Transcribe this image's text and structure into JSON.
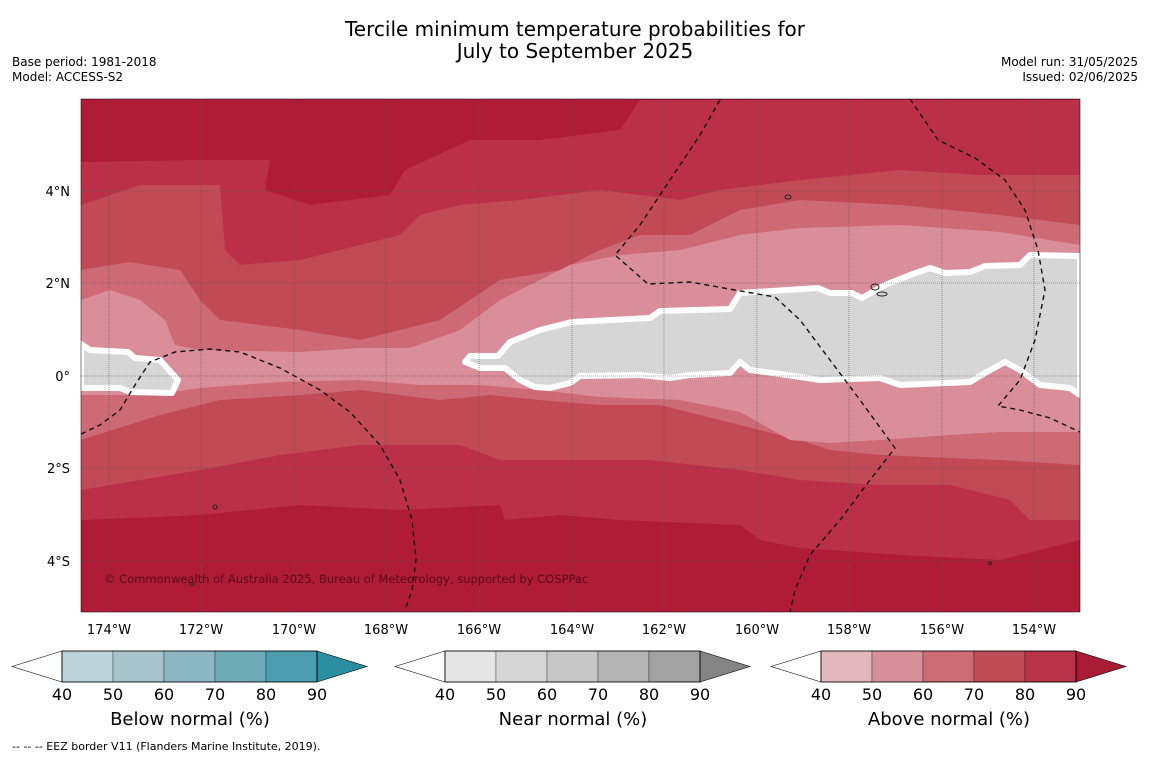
{
  "title": {
    "line1": "Tercile minimum temperature probabilities for",
    "line2": "July to September 2025"
  },
  "meta": {
    "base_period": "Base period: 1981-2018",
    "model": "Model: ACCESS-S2",
    "model_run": "Model run: 31/05/2025",
    "issued": "Issued: 02/06/2025"
  },
  "map": {
    "copyright": "© Commonwealth of Australia 2025, Bureau of Meteorology, supported by COSPPac",
    "lon_labels": [
      "174°W",
      "172°W",
      "170°W",
      "168°W",
      "166°W",
      "164°W",
      "162°W",
      "160°W",
      "158°W",
      "156°W",
      "154°W"
    ],
    "lat_labels": [
      "4°N",
      "2°N",
      "0°",
      "2°S",
      "4°S"
    ]
  },
  "colorbars": [
    {
      "title": "Below normal (%)",
      "ticks": [
        "40",
        "50",
        "60",
        "70",
        "80",
        "90"
      ],
      "colors": [
        "#ffffff",
        "#bdd3da",
        "#a7c4cc",
        "#8db6c3",
        "#6eaab8",
        "#4a9eaf",
        "#2a8ea1"
      ]
    },
    {
      "title": "Near normal (%)",
      "ticks": [
        "40",
        "50",
        "60",
        "70",
        "80",
        "90"
      ],
      "colors": [
        "#ffffff",
        "#e6e6e6",
        "#d6d6d6",
        "#c6c6c6",
        "#b4b4b4",
        "#a2a2a2",
        "#848484"
      ]
    },
    {
      "title": "Above normal (%)",
      "ticks": [
        "40",
        "50",
        "60",
        "70",
        "80",
        "90"
      ],
      "colors": [
        "#ffffff",
        "#e2b8be",
        "#d78f99",
        "#cb6c77",
        "#c04c58",
        "#b83249",
        "#aa1b36"
      ]
    }
  ],
  "footnote": "--  --  -- EEZ border V11 (Flanders Marine Institute, 2019)."
}
